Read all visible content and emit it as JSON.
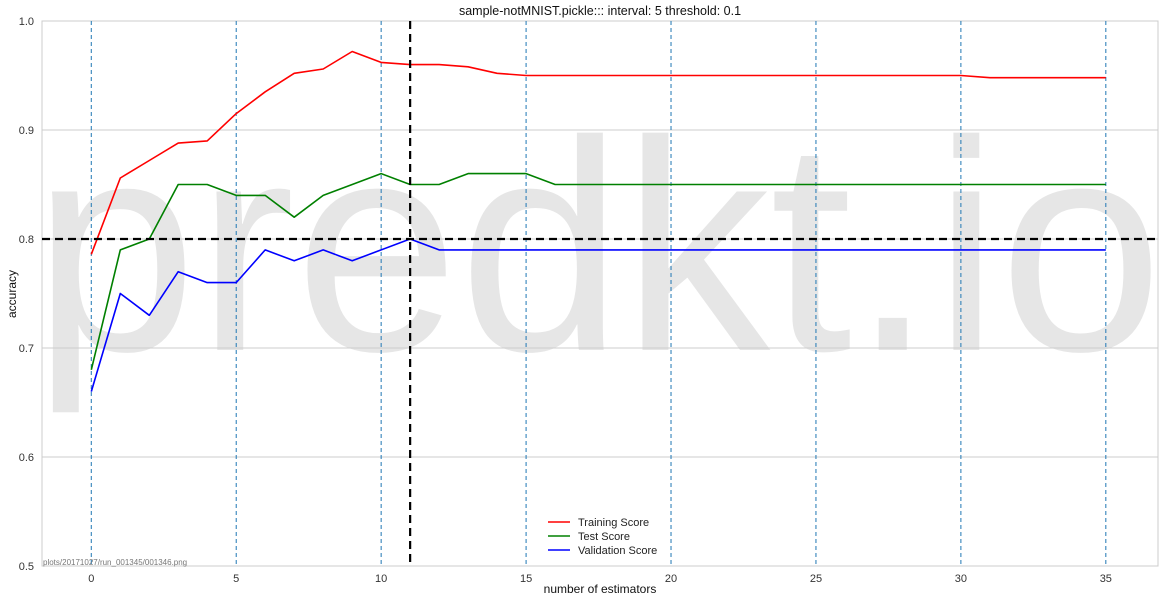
{
  "chart_data": {
    "type": "line",
    "title": "sample-notMNIST.pickle::: interval: 5 threshold: 0.1",
    "xlabel": "number of estimators",
    "ylabel": "accuracy",
    "xlim": [
      -1.7,
      36.8
    ],
    "ylim": [
      0.5,
      1.0
    ],
    "xticks": [
      0,
      5,
      10,
      15,
      20,
      25,
      30,
      35
    ],
    "yticks": [
      0.5,
      0.6,
      0.7,
      0.8,
      0.9,
      1.0
    ],
    "ytick_labels": [
      "0.5",
      "0.6",
      "0.7",
      "0.8",
      "0.9",
      "1.0"
    ],
    "grid": "horizontal",
    "legend_position": "bottom-center",
    "x": [
      0,
      1,
      2,
      3,
      4,
      5,
      6,
      7,
      8,
      9,
      10,
      11,
      12,
      13,
      14,
      15,
      16,
      17,
      18,
      19,
      20,
      21,
      22,
      23,
      24,
      25,
      26,
      27,
      28,
      29,
      30,
      31,
      32,
      33,
      34,
      35
    ],
    "series": [
      {
        "name": "Training Score",
        "color": "#ff0000",
        "values": [
          0.786,
          0.856,
          0.872,
          0.888,
          0.89,
          0.915,
          0.935,
          0.952,
          0.956,
          0.972,
          0.962,
          0.96,
          0.96,
          0.958,
          0.952,
          0.95,
          0.95,
          0.95,
          0.95,
          0.95,
          0.95,
          0.95,
          0.95,
          0.95,
          0.95,
          0.95,
          0.95,
          0.95,
          0.95,
          0.95,
          0.95,
          0.948,
          0.948,
          0.948,
          0.948,
          0.948
        ]
      },
      {
        "name": "Test Score",
        "color": "#008000",
        "values": [
          0.68,
          0.79,
          0.8,
          0.85,
          0.85,
          0.84,
          0.84,
          0.82,
          0.84,
          0.85,
          0.86,
          0.85,
          0.85,
          0.86,
          0.86,
          0.86,
          0.85,
          0.85,
          0.85,
          0.85,
          0.85,
          0.85,
          0.85,
          0.85,
          0.85,
          0.85,
          0.85,
          0.85,
          0.85,
          0.85,
          0.85,
          0.85,
          0.85,
          0.85,
          0.85,
          0.85
        ]
      },
      {
        "name": "Validation Score",
        "color": "#0000ff",
        "values": [
          0.66,
          0.75,
          0.73,
          0.77,
          0.76,
          0.76,
          0.79,
          0.78,
          0.79,
          0.78,
          0.79,
          0.8,
          0.79,
          0.79,
          0.79,
          0.79,
          0.79,
          0.79,
          0.79,
          0.79,
          0.79,
          0.79,
          0.79,
          0.79,
          0.79,
          0.79,
          0.79,
          0.79,
          0.79,
          0.79,
          0.79,
          0.79,
          0.79,
          0.79,
          0.79,
          0.79
        ]
      }
    ],
    "interval_lines_x": [
      0,
      5,
      10,
      15,
      20,
      25,
      30,
      35
    ],
    "interval_line_color": "#1f77b4",
    "threshold_vline_x": 11,
    "threshold_hline_y": 0.8,
    "watermark": "predkt.io",
    "file_label": "plots/20171027/run_001345/001346.png"
  }
}
